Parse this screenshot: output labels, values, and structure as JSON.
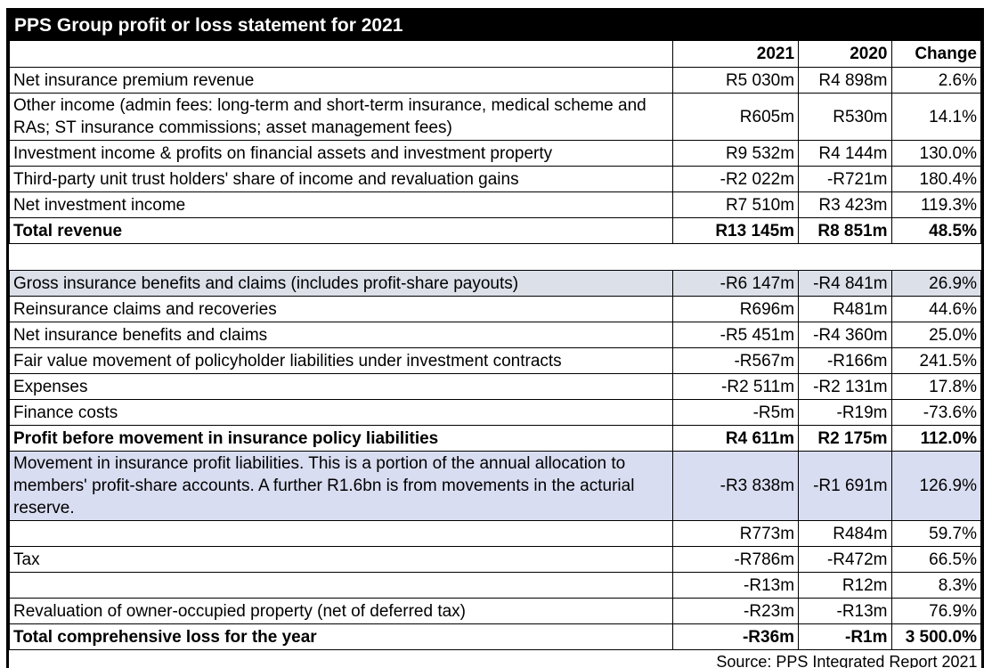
{
  "title": "PPS Group profit or loss statement for 2021",
  "source_note": "Source: PPS Integrated Report 2021",
  "columns": {
    "c2021": "2021",
    "c2020": "2020",
    "change": "Change"
  },
  "colors": {
    "title_bg": "#000000",
    "title_text": "#ffffff",
    "shade_gray_blue": "#dce0e9",
    "shade_lavender": "#d9ddf1",
    "border": "#000000"
  },
  "rows": [
    {
      "label": "Net insurance premium revenue",
      "v2021": "R5 030m",
      "v2020": "R4 898m",
      "change": "2.6%",
      "style": "normal"
    },
    {
      "label": "Other income (admin fees: long-term and short-term insurance, medical scheme and RAs; ST insurance commissions; asset management fees)",
      "v2021": "R605m",
      "v2020": "R530m",
      "change": "14.1%",
      "style": "normal"
    },
    {
      "label": "Investment income & profits on financial assets and investment property",
      "v2021": "R9 532m",
      "v2020": "R4 144m",
      "change": "130.0%",
      "style": "normal"
    },
    {
      "label": "Third-party unit trust holders' share of income and revaluation gains",
      "v2021": "-R2 022m",
      "v2020": "-R721m",
      "change": "180.4%",
      "style": "normal"
    },
    {
      "label": "Net investment income",
      "v2021": "R7 510m",
      "v2020": "R3 423m",
      "change": "119.3%",
      "style": "normal"
    },
    {
      "label": "Total revenue",
      "v2021": "R13 145m",
      "v2020": "R8 851m",
      "change": "48.5%",
      "style": "bold"
    },
    {
      "style": "spacer"
    },
    {
      "label": "Gross insurance benefits and claims (includes profit-share payouts)",
      "v2021": "-R6 147m",
      "v2020": "-R4 841m",
      "change": "26.9%",
      "style": "normal",
      "shade": "shade_gray_blue"
    },
    {
      "label": "Reinsurance claims and recoveries",
      "v2021": "R696m",
      "v2020": "R481m",
      "change": "44.6%",
      "style": "normal"
    },
    {
      "label": "Net insurance benefits and claims",
      "v2021": "-R5 451m",
      "v2020": "-R4 360m",
      "change": "25.0%",
      "style": "normal"
    },
    {
      "label": "Fair value movement of policyholder liabilities under investment contracts",
      "v2021": "-R567m",
      "v2020": "-R166m",
      "change": "241.5%",
      "style": "normal"
    },
    {
      "label": "Expenses",
      "v2021": "-R2 511m",
      "v2020": "-R2 131m",
      "change": "17.8%",
      "style": "normal"
    },
    {
      "label": "Finance costs",
      "v2021": "-R5m",
      "v2020": "-R19m",
      "change": "-73.6%",
      "style": "normal"
    },
    {
      "label": "Profit before movement in insurance policy liabilities",
      "v2021": "R4 611m",
      "v2020": "R2 175m",
      "change": "112.0%",
      "style": "bold"
    },
    {
      "label": "Movement in insurance profit liabilities. This is a portion of the annual allocation to members' profit-share accounts. A further R1.6bn is from movements in the acturial reserve.",
      "v2021": "-R3 838m",
      "v2020": "-R1 691m",
      "change": "126.9%",
      "style": "normal",
      "shade": "shade_lavender"
    },
    {
      "label": "",
      "v2021": "R773m",
      "v2020": "R484m",
      "change": "59.7%",
      "style": "normal"
    },
    {
      "label": "Tax",
      "v2021": "-R786m",
      "v2020": "-R472m",
      "change": "66.5%",
      "style": "normal"
    },
    {
      "label": "",
      "v2021": "-R13m",
      "v2020": "R12m",
      "change": "8.3%",
      "style": "normal"
    },
    {
      "label": "Revaluation of owner-occupied property (net of deferred tax)",
      "v2021": "-R23m",
      "v2020": "-R13m",
      "change": "76.9%",
      "style": "normal"
    },
    {
      "label": "Total comprehensive loss for the year",
      "v2021": "-R36m",
      "v2020": "-R1m",
      "change": "3 500.0%",
      "style": "bold"
    }
  ]
}
